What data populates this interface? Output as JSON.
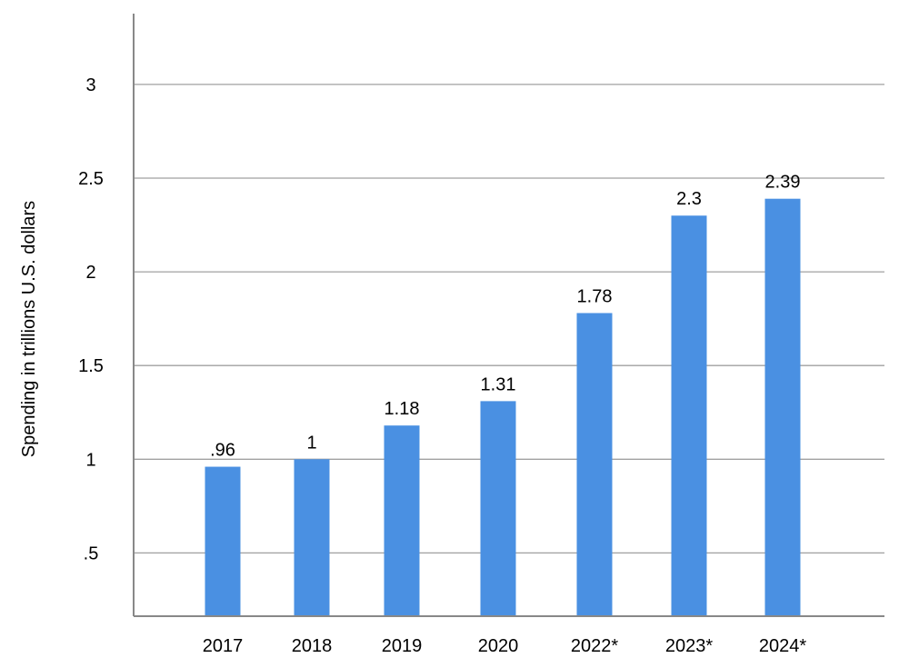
{
  "chart_data": {
    "type": "bar",
    "categories": [
      "2017",
      "2018",
      "2019",
      "2020",
      "2022*",
      "2023*",
      "2024*"
    ],
    "values": [
      0.96,
      1,
      1.18,
      1.31,
      1.78,
      2.3,
      2.39
    ],
    "value_labels": [
      ".96",
      "1",
      "1.18",
      "1.31",
      "1.78",
      "2.3",
      "2.39"
    ],
    "ylabel": "Spending in trillions U.S. dollars",
    "xlabel": "",
    "title": "",
    "ylim": [
      0,
      3.4
    ],
    "yticks": [
      0.5,
      1,
      1.5,
      2,
      2.5,
      3
    ],
    "ytick_labels": [
      ".5",
      "1",
      "1.5",
      "2",
      "2.5",
      "3"
    ],
    "grid": "horizontal",
    "bar_color": "#4a90e2",
    "grid_color": "#a0a0a0",
    "axis_color": "#888888"
  }
}
